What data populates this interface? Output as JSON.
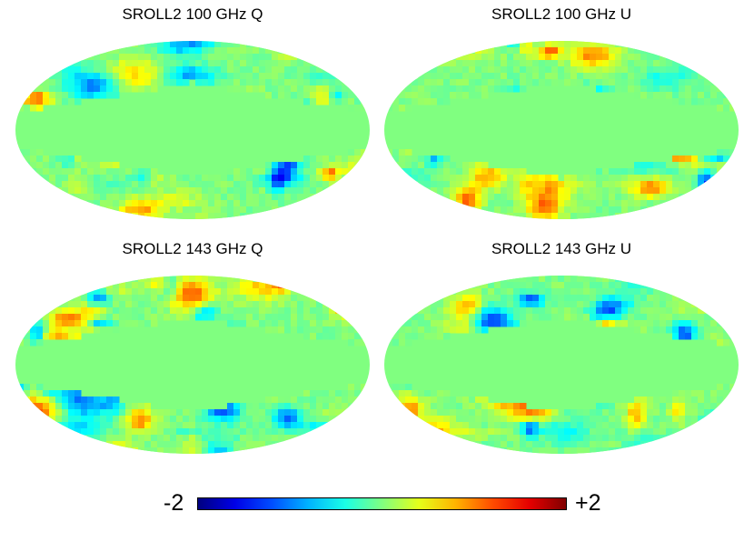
{
  "panels": [
    {
      "title": "SROLL2 100 GHz Q",
      "seed": 11
    },
    {
      "title": "SROLL2 100 GHz U",
      "seed": 37
    },
    {
      "title": "SROLL2 143 GHz Q",
      "seed": 53
    },
    {
      "title": "SROLL2 143 GHz U",
      "seed": 71
    }
  ],
  "colorbar": {
    "min_label": "-2",
    "max_label": "+2",
    "min": -2,
    "max": 2,
    "colormap": "jet"
  },
  "colors": {
    "mask_green": "#80ff80"
  }
}
